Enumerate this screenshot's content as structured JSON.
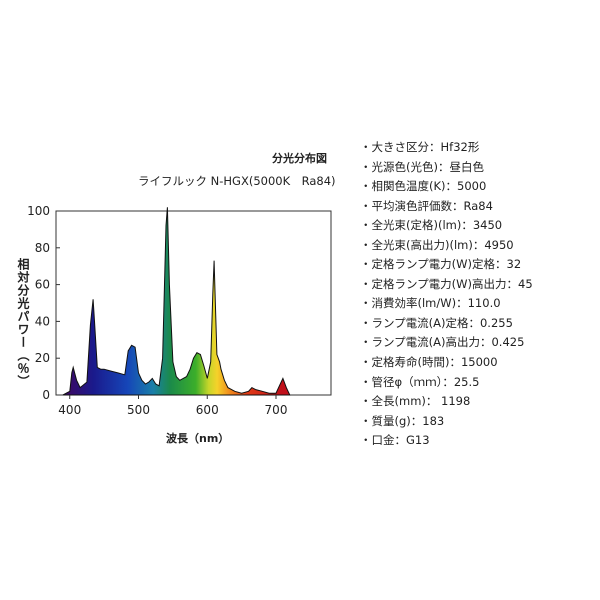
{
  "chart_data": {
    "type": "area",
    "title": "分光分布図",
    "subtitle": "ライフルック N-HGX(5000K　Ra84)",
    "xlabel": "波長（nm）",
    "ylabel": "相対分光パワー（％）",
    "xlim": [
      380,
      780
    ],
    "ylim": [
      0,
      100
    ],
    "xticks": [
      400,
      500,
      600,
      700
    ],
    "yticks": [
      0,
      20,
      40,
      60,
      80,
      100
    ],
    "grid": false,
    "x": [
      390,
      400,
      403,
      405,
      410,
      415,
      425,
      430,
      434,
      436,
      440,
      445,
      450,
      460,
      470,
      480,
      485,
      490,
      495,
      500,
      505,
      510,
      515,
      520,
      525,
      530,
      535,
      540,
      542,
      545,
      550,
      555,
      560,
      565,
      570,
      575,
      580,
      585,
      590,
      595,
      600,
      605,
      608,
      610,
      611,
      614,
      618,
      620,
      625,
      630,
      640,
      650,
      660,
      665,
      670,
      680,
      690,
      700,
      705,
      710,
      715,
      720
    ],
    "y": [
      0,
      2,
      12,
      15,
      8,
      4,
      7,
      38,
      52,
      40,
      15,
      14,
      14,
      13,
      12,
      11,
      24,
      27,
      26,
      12,
      8,
      6,
      7,
      9,
      6,
      5,
      20,
      92,
      102,
      60,
      18,
      10,
      8,
      9,
      10,
      14,
      20,
      23,
      22,
      16,
      9,
      18,
      55,
      73,
      60,
      22,
      18,
      14,
      8,
      4,
      2,
      1,
      2,
      4,
      3,
      2,
      1,
      1,
      5,
      9,
      4,
      0
    ]
  },
  "specs": [
    "・大きさ区分：Hf32形",
    "・光源色(光色)：昼白色",
    "・相関色温度(K)：5000",
    "・平均演色評価数：Ra84",
    "・全光束(定格)(lm)：3450",
    "・全光束(高出力)(lm)：4950",
    "・定格ランプ電力(W)定格：32",
    "・定格ランプ電力(W)高出力：45",
    "・消費効率(lm/W)：110.0",
    "・ランプ電流(A)定格：0.255",
    "・ランプ電流(A)高出力：0.425",
    "・定格寿命(時間)：15000",
    "・管径φ（ｍｍ）：25.5",
    "・全長(mm)： 1198",
    "・質量(g)：183",
    "・口金：G13"
  ]
}
